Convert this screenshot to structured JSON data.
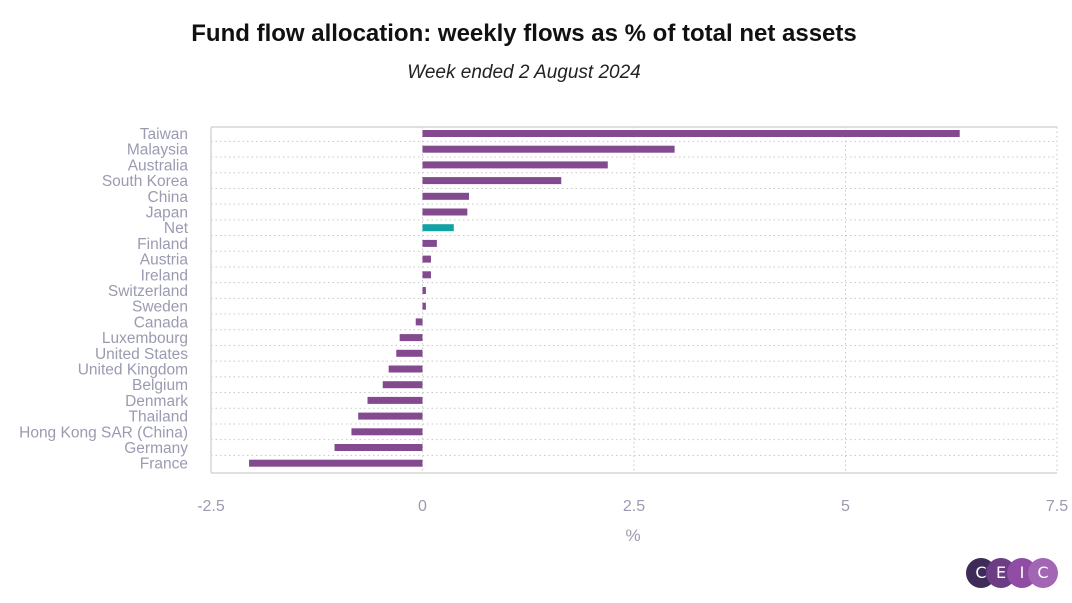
{
  "title": "Fund flow allocation: weekly flows as % of total net assets",
  "subtitle": "Week ended 2 August 2024",
  "logo": {
    "letters": [
      "C",
      "E",
      "I",
      "C"
    ]
  },
  "colors": {
    "bar": "#844a8f",
    "highlight": "#11a3a3",
    "axis_text": "#9a9bb0",
    "grid": "#c8c8c8",
    "logo": [
      "#3f2b59",
      "#6c3d85",
      "#8f4ea4",
      "#a266b5"
    ]
  },
  "chart_data": {
    "type": "bar",
    "orientation": "horizontal",
    "xlabel": "%",
    "ylabel": "",
    "xlim": [
      -2.5,
      7.5
    ],
    "xticks": [
      -2.5,
      0,
      2.5,
      5,
      7.5
    ],
    "xtick_labels": [
      "-2.5",
      "0",
      "2.5",
      "5",
      "7.5"
    ],
    "grid": true,
    "categories": [
      "Taiwan",
      "Malaysia",
      "Australia",
      "South Korea",
      "China",
      "Japan",
      "Net",
      "Finland",
      "Austria",
      "Ireland",
      "Switzerland",
      "Sweden",
      "Canada",
      "Luxembourg",
      "United States",
      "United Kingdom",
      "Belgium",
      "Denmark",
      "Thailand",
      "Hong Kong SAR (China)",
      "Germany",
      "France"
    ],
    "values": [
      6.35,
      2.98,
      2.19,
      1.64,
      0.55,
      0.53,
      0.37,
      0.17,
      0.1,
      0.1,
      0.04,
      0.04,
      -0.08,
      -0.27,
      -0.31,
      -0.4,
      -0.47,
      -0.65,
      -0.76,
      -0.84,
      -1.04,
      -2.05
    ],
    "highlight_category": "Net"
  }
}
